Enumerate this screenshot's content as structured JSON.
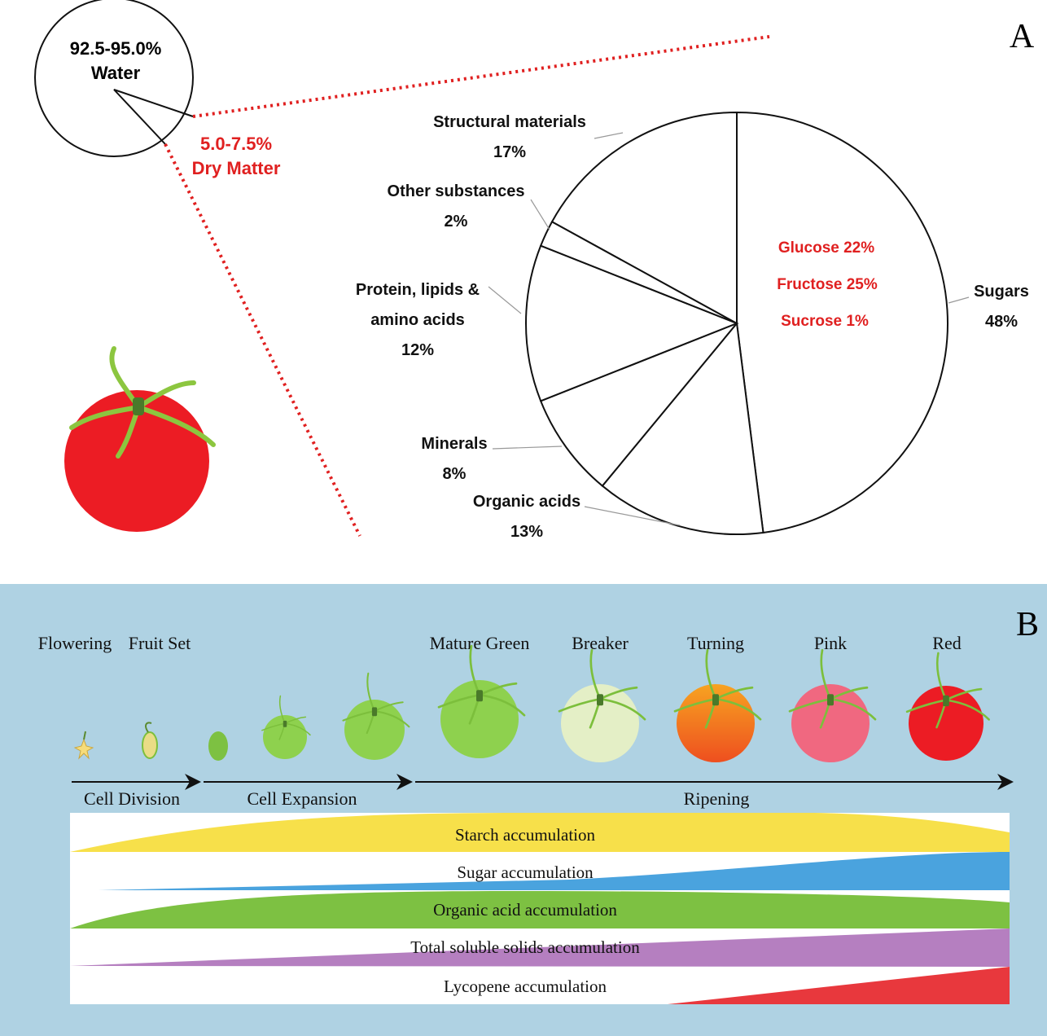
{
  "panel_a": {
    "letter": "A",
    "water": {
      "range": "92.5-95.0%",
      "name": "Water"
    },
    "dry_matter": {
      "range": "5.0-7.5%",
      "name": "Dry Matter"
    },
    "sugar_breakdown": [
      "Glucose 22%",
      "Fructose 25%",
      "Sucrose 1%"
    ]
  },
  "chart_data": {
    "type": "pie",
    "categories": [
      "Sugars",
      "Organic acids",
      "Minerals",
      "Protein, lipids & amino acids",
      "Other substances",
      "Structural materials"
    ],
    "values": [
      48,
      13,
      8,
      12,
      2,
      17
    ],
    "value_labels": [
      "48%",
      "13%",
      "8%",
      "12%",
      "2%",
      "17%"
    ]
  },
  "panel_b": {
    "letter": "B",
    "stages": [
      "Flowering",
      "Fruit Set",
      "Mature Green",
      "Breaker",
      "Turning",
      "Pink",
      "Red"
    ],
    "phases": [
      "Cell Division",
      "Cell Expansion",
      "Ripening"
    ],
    "accumulations": [
      "Starch accumulation",
      "Sugar accumulation",
      "Organic acid accumulation",
      "Total soluble solids accumulation",
      "Lycopene accumulation"
    ]
  }
}
